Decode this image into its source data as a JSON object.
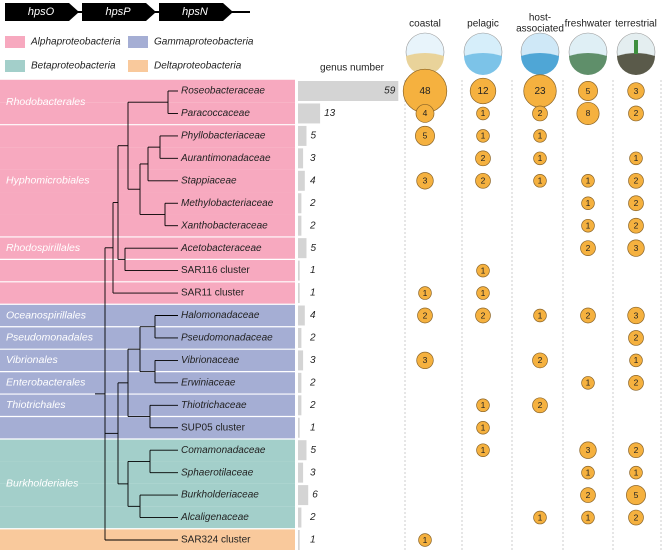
{
  "genes": [
    "hpsO",
    "hpsP",
    "hpsN"
  ],
  "legend": [
    {
      "label": "Alphaproteobacteria",
      "color": "#f7a9bf"
    },
    {
      "label": "Gammaproteobacteria",
      "color": "#a5aed4"
    },
    {
      "label": "Betaproteobacteria",
      "color": "#a3cfca"
    },
    {
      "label": "Deltaproteobacteria",
      "color": "#f9c99c"
    }
  ],
  "genus_header": "genus number",
  "habitats": [
    [
      "coastal"
    ],
    [
      "pelagic"
    ],
    [
      "host-",
      "associated"
    ],
    [
      "freshwater"
    ],
    [
      "terrestrial"
    ]
  ],
  "orders": [
    {
      "name": "Rhodobacterales",
      "first": 0,
      "last": 1
    },
    {
      "name": "Hyphomicrobiales",
      "first": 2,
      "last": 6
    },
    {
      "name": "Rhodospirillales",
      "first": 7,
      "last": 7
    },
    {
      "name": "Oceanospirillales",
      "first": 10,
      "last": 10
    },
    {
      "name": "Pseudomonadales",
      "first": 11,
      "last": 11
    },
    {
      "name": "Vibrionales",
      "first": 12,
      "last": 12
    },
    {
      "name": "Enterobacterales",
      "first": 13,
      "last": 13
    },
    {
      "name": "Thiotrichales",
      "first": 14,
      "last": 14
    },
    {
      "name": "Burkholderiales",
      "first": 16,
      "last": 19
    }
  ],
  "families": [
    {
      "name": "Roseobacteraceae",
      "italic": true,
      "class": 0,
      "genus": 59,
      "counts": [
        48,
        12,
        23,
        5,
        3
      ]
    },
    {
      "name": "Paracoccaceae",
      "italic": true,
      "class": 0,
      "genus": 13,
      "counts": [
        4,
        1,
        2,
        8,
        2
      ]
    },
    {
      "name": "Phyllobacteriaceae",
      "italic": true,
      "class": 0,
      "genus": 5,
      "counts": [
        5,
        1,
        1,
        null,
        null
      ]
    },
    {
      "name": "Aurantimonadaceae",
      "italic": true,
      "class": 0,
      "genus": 3,
      "counts": [
        null,
        2,
        1,
        null,
        1
      ]
    },
    {
      "name": "Stappiaceae",
      "italic": true,
      "class": 0,
      "genus": 4,
      "counts": [
        3,
        2,
        1,
        1,
        2
      ]
    },
    {
      "name": "Methylobacteriaceae",
      "italic": true,
      "class": 0,
      "genus": 2,
      "counts": [
        null,
        null,
        null,
        1,
        2
      ]
    },
    {
      "name": "Xanthobacteraceae",
      "italic": true,
      "class": 0,
      "genus": 2,
      "counts": [
        null,
        null,
        null,
        1,
        2
      ]
    },
    {
      "name": "Acetobacteraceae",
      "italic": true,
      "class": 0,
      "genus": 5,
      "counts": [
        null,
        null,
        null,
        2,
        3
      ]
    },
    {
      "name": "SAR116 cluster",
      "italic": false,
      "class": 0,
      "genus": 1,
      "counts": [
        null,
        1,
        null,
        null,
        null
      ]
    },
    {
      "name": "SAR11 cluster",
      "italic": false,
      "class": 0,
      "genus": 1,
      "counts": [
        1,
        1,
        null,
        null,
        null
      ]
    },
    {
      "name": "Halomonadaceae",
      "italic": true,
      "class": 1,
      "genus": 4,
      "counts": [
        2,
        2,
        1,
        2,
        3
      ]
    },
    {
      "name": "Pseudomonadaceae",
      "italic": true,
      "class": 1,
      "genus": 2,
      "counts": [
        null,
        null,
        null,
        null,
        2
      ]
    },
    {
      "name": "Vibrionaceae",
      "italic": true,
      "class": 1,
      "genus": 3,
      "counts": [
        3,
        null,
        2,
        null,
        1
      ]
    },
    {
      "name": "Erwiniaceae",
      "italic": true,
      "class": 1,
      "genus": 2,
      "counts": [
        null,
        null,
        null,
        1,
        2
      ]
    },
    {
      "name": "Thiotrichaceae",
      "italic": true,
      "class": 1,
      "genus": 2,
      "counts": [
        null,
        1,
        2,
        null,
        null
      ]
    },
    {
      "name": "SUP05 cluster",
      "italic": false,
      "class": 1,
      "genus": 1,
      "counts": [
        null,
        1,
        null,
        null,
        null
      ]
    },
    {
      "name": "Comamonadaceae",
      "italic": true,
      "class": 2,
      "genus": 5,
      "counts": [
        null,
        1,
        null,
        3,
        2
      ]
    },
    {
      "name": "Sphaerotilaceae",
      "italic": true,
      "class": 2,
      "genus": 3,
      "counts": [
        null,
        null,
        null,
        1,
        1
      ]
    },
    {
      "name": "Burkholderiaceae",
      "italic": true,
      "class": 2,
      "genus": 6,
      "counts": [
        null,
        null,
        null,
        2,
        5
      ]
    },
    {
      "name": "Alcaligenaceae",
      "italic": true,
      "class": 2,
      "genus": 2,
      "counts": [
        null,
        null,
        1,
        1,
        2
      ]
    },
    {
      "name": "SAR324 cluster",
      "italic": false,
      "class": 3,
      "genus": 1,
      "counts": [
        1,
        null,
        null,
        null,
        null
      ]
    }
  ]
}
